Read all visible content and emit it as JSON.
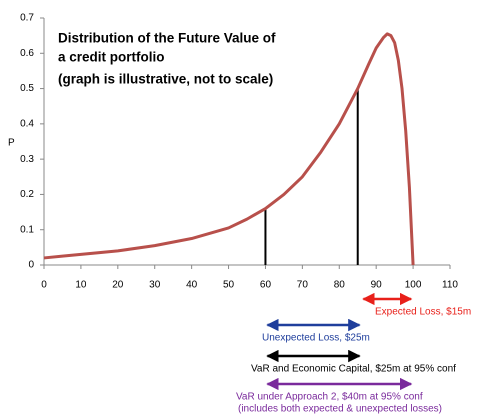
{
  "chart_data": {
    "type": "line",
    "title": [
      "Distribution of the Future Value of",
      "a credit portfolio",
      "(graph is illustrative, not to scale)"
    ],
    "y_label": "P",
    "x": [
      0,
      5,
      10,
      20,
      30,
      40,
      50,
      55,
      60,
      65,
      70,
      75,
      80,
      85,
      88,
      90,
      92,
      93,
      94,
      95,
      96,
      97,
      98,
      99,
      100
    ],
    "series": [
      {
        "color": "#b8504b",
        "values": [
          0.02,
          0.025,
          0.03,
          0.04,
          0.055,
          0.075,
          0.105,
          0.13,
          0.16,
          0.2,
          0.25,
          0.32,
          0.4,
          0.5,
          0.57,
          0.615,
          0.645,
          0.655,
          0.65,
          0.63,
          0.58,
          0.5,
          0.38,
          0.22,
          0
        ]
      }
    ],
    "markers": [
      {
        "x": 60,
        "y": 0.16
      },
      {
        "x": 85,
        "y": 0.5
      }
    ],
    "annotations": [
      {
        "text": [
          "Expected Loss, $15m"
        ],
        "x": [
          86,
          100
        ],
        "color": "#e8201a"
      },
      {
        "text": [
          "Unexpected Loss, $25m"
        ],
        "x": [
          60,
          86
        ],
        "color": "#1f3e9c"
      },
      {
        "text": [
          "VaR and Economic Capital, $25m at 95% conf"
        ],
        "x": [
          60,
          86
        ],
        "color": "#000000"
      },
      {
        "text": [
          "VaR under Approach 2, $40m at 95% conf",
          "(includes both expected & unexpected losses)"
        ],
        "x": [
          60,
          100
        ],
        "color": "#7a2a9c"
      }
    ],
    "xlim": [
      0,
      110
    ],
    "xticks": [
      0,
      10,
      20,
      30,
      40,
      50,
      60,
      70,
      80,
      90,
      100,
      110
    ],
    "ylim": [
      0,
      0.7
    ],
    "yticks": [
      0,
      0.1,
      0.2,
      0.3,
      0.4,
      0.5,
      0.6,
      0.7
    ],
    "grid": false
  }
}
